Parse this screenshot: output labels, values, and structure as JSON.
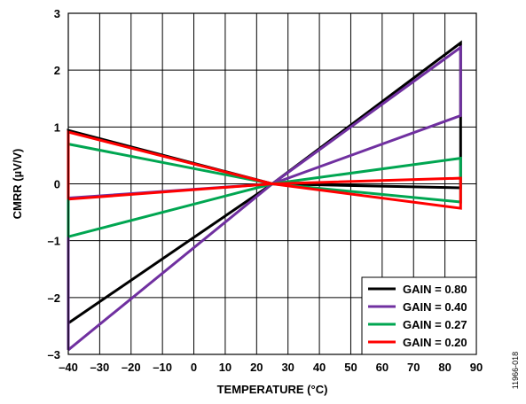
{
  "chart_data": {
    "type": "line",
    "xlabel": "TEMPERATURE (°C)",
    "ylabel": "CMRR (µV/V)",
    "xlim": [
      -40,
      90
    ],
    "ylim": [
      -3,
      3
    ],
    "xticks": [
      -40,
      -30,
      -20,
      -10,
      0,
      10,
      20,
      30,
      40,
      50,
      60,
      70,
      80,
      90
    ],
    "yticks": [
      -3,
      -2,
      -1,
      0,
      1,
      2,
      3
    ],
    "xtick_labels": [
      "–40",
      "–30",
      "–20",
      "–10",
      "0",
      "10",
      "20",
      "30",
      "40",
      "50",
      "60",
      "70",
      "80",
      "90"
    ],
    "ytick_labels": [
      "–3",
      "–2",
      "–1",
      "0",
      "1",
      "2",
      "3"
    ],
    "grid": true,
    "legend_position": "bottom-right",
    "series": [
      {
        "name": "GAIN = 0.80",
        "color": "#000000",
        "x": [
          -40,
          25,
          85,
          85,
          25,
          -40,
          -40
        ],
        "y": [
          -2.45,
          0.0,
          2.48,
          -0.07,
          0.0,
          0.94,
          -2.45
        ]
      },
      {
        "name": "GAIN = 0.40",
        "color": "#7030a0",
        "x": [
          -40,
          25,
          85,
          85,
          25,
          -40,
          -40
        ],
        "y": [
          -2.92,
          0.0,
          2.4,
          1.2,
          0.0,
          -0.25,
          -2.92
        ]
      },
      {
        "name": "GAIN = 0.27",
        "color": "#00a651",
        "x": [
          -40,
          25,
          85,
          85,
          25,
          -40,
          -40
        ],
        "y": [
          -0.93,
          0.0,
          0.45,
          -0.32,
          0.0,
          0.7,
          -0.93
        ]
      },
      {
        "name": "GAIN = 0.20",
        "color": "#ff0000",
        "x": [
          -40,
          25,
          85,
          85,
          25,
          -40,
          -40
        ],
        "y": [
          -0.27,
          0.0,
          0.1,
          -0.43,
          0.0,
          0.91,
          -0.27
        ]
      }
    ]
  },
  "figure_id": "11966-018"
}
